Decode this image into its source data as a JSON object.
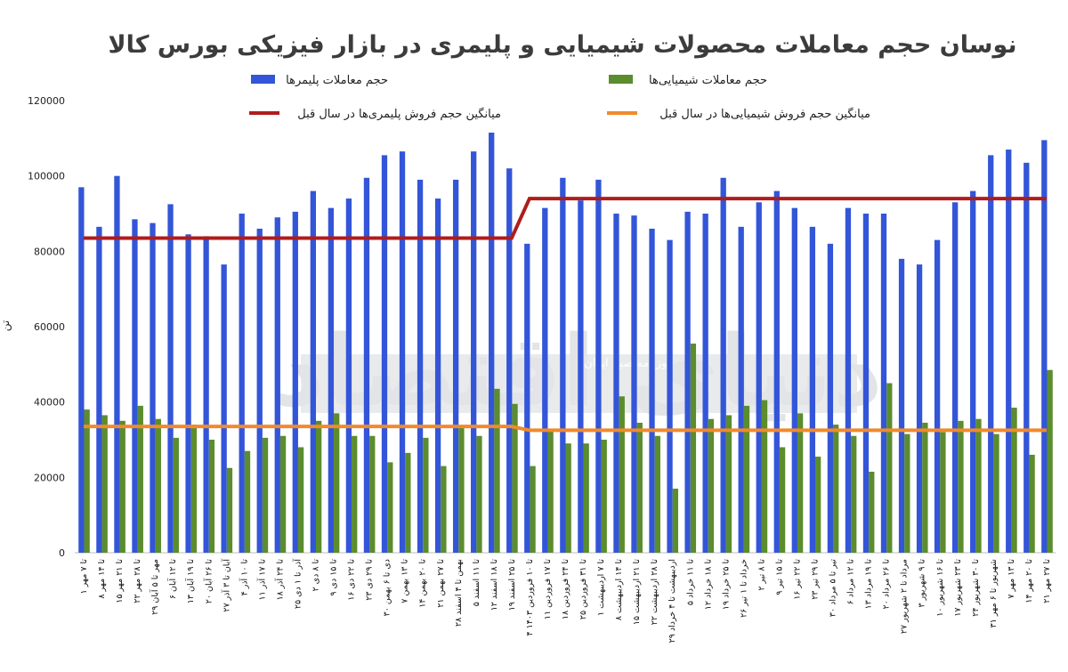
{
  "chart_data": {
    "type": "bar",
    "title": "نوسان حجم معاملات محصولات شیمیایی و پلیمری در بازار فیزیکی بورس کالا",
    "ylabel": "تن",
    "ylim": [
      0,
      120000
    ],
    "yticks": [
      0,
      20000,
      40000,
      60000,
      80000,
      100000,
      120000
    ],
    "grid": false,
    "legend_position": "top",
    "categories": [
      "۱ تا ۷ مهر",
      "۸ تا ۱۴ مهر",
      "۱۵ تا ۲۱ مهر",
      "۲۲ تا ۲۸ مهر",
      "۲۹ مهر تا ۵ آبان",
      "۶ تا ۱۲ آبان",
      "۱۳ تا ۱۹ آبان",
      "۲۰ تا ۲۶ آبان",
      "۲۷ آبان تا ۳ آذر",
      "۴ تا ۱۰ آذر",
      "۱۱ تا ۱۷ آذر",
      "۱۸ تا ۲۴ آذر",
      "۲۵ آذر تا ۱ دی",
      "۲ تا ۸ دی",
      "۹ تا ۱۵ دی",
      "۱۶ تا ۲۲ دی",
      "۲۳ تا ۲۹ دی",
      "۳۰ دی تا ۶ بهمن",
      "۷ تا ۱۳ بهمن",
      "۱۴ تا ۲۰ بهمن",
      "۲۱ تا ۲۷ بهمن",
      "۲۸ بهمن تا ۴ اسفند",
      "۵ تا ۱۱ اسفند",
      "۱۲ تا ۱۸ اسفند",
      "۱۹ تا ۲۵ اسفند",
      "۴ تا ۱۰ فروردین ۱۴۰۳",
      "۱۱ تا ۱۷ فروردین",
      "۱۸ تا ۲۴ فروردین",
      "۲۵ تا ۳۱ فروردین",
      "۱ تا ۷ اردیبهشت",
      "۸ تا ۱۴ اردیبهشت",
      "۱۵ تا ۲۱ اردیبهشت",
      "۲۲ تا ۲۸ اردیبهشت",
      "۲۹ اردیبهشت تا ۴ خرداد",
      "۵ تا ۱۱ خرداد",
      "۱۲ تا ۱۸ خرداد",
      "۱۹ تا ۲۵ خرداد",
      "۲۶ خرداد تا ۱ تیر",
      "۲ تا ۸ تیر",
      "۹ تا ۱۵ تیر",
      "۱۶ تا ۲۲ تیر",
      "۲۳ تا ۲۹ تیر",
      "۳۰ تیر تا ۵ مرداد",
      "۶ تا ۱۲ مرداد",
      "۱۳ تا ۱۹ مرداد",
      "۲۰ تا ۲۶ مرداد",
      "۲۷ مرداد تا ۲ شهریور",
      "۳ تا ۹ شهریور",
      "۱۰ تا ۱۶ شهریور",
      "۱۷ تا ۲۳ شهریور",
      "۲۴ تا ۳۰ شهریور",
      "۳۱ شهریور تا ۶ مهر",
      "۷ تا ۱۳ مهر",
      "۱۴ تا ۲۰ مهر",
      "۲۱ تا ۲۷ مهر"
    ],
    "series": [
      {
        "name": "حجم معاملات پلیمرها",
        "type": "bar",
        "color": "#3355d8",
        "values": [
          97000,
          86500,
          100000,
          88500,
          87500,
          92500,
          84500,
          84000,
          76500,
          90000,
          86000,
          89000,
          90500,
          96000,
          91500,
          94000,
          99500,
          105500,
          106500,
          99000,
          94000,
          99000,
          106500,
          111500,
          102000,
          82000,
          91500,
          99500,
          93500,
          99000,
          90000,
          89500,
          86000,
          83000,
          90500,
          90000,
          99500,
          86500,
          93000,
          96000,
          91500,
          86500,
          82000,
          91500,
          90000,
          90000,
          78000,
          76500,
          83000,
          93000,
          96000,
          105500,
          107000,
          103500,
          109500
        ]
      },
      {
        "name": "حجم معاملات شیمیایی‌ها",
        "type": "bar",
        "color": "#5b8c2e",
        "values": [
          38000,
          36500,
          35000,
          39000,
          35500,
          30500,
          34000,
          30000,
          22500,
          27000,
          30500,
          31000,
          28000,
          35000,
          37000,
          31000,
          31000,
          24000,
          26500,
          30500,
          23000,
          33500,
          31000,
          43500,
          39500,
          23000,
          32500,
          29000,
          29000,
          30000,
          41500,
          34500,
          31000,
          17000,
          55500,
          35500,
          36500,
          39000,
          40500,
          28000,
          37000,
          25500,
          34000,
          31000,
          21500,
          45000,
          31500,
          34500,
          32000,
          35000,
          35500,
          31500,
          38500,
          26000,
          48500
        ]
      },
      {
        "name": "میانگین حجم فروش پلیمری‌ها در سال قبل",
        "type": "line",
        "color": "#b01c1c",
        "values": [
          83500,
          83500,
          83500,
          83500,
          83500,
          83500,
          83500,
          83500,
          83500,
          83500,
          83500,
          83500,
          83500,
          83500,
          83500,
          83500,
          83500,
          83500,
          83500,
          83500,
          83500,
          83500,
          83500,
          83500,
          83500,
          94000,
          94000,
          94000,
          94000,
          94000,
          94000,
          94000,
          94000,
          94000,
          94000,
          94000,
          94000,
          94000,
          94000,
          94000,
          94000,
          94000,
          94000,
          94000,
          94000,
          94000,
          94000,
          94000,
          94000,
          94000,
          94000,
          94000,
          94000,
          94000,
          94000
        ]
      },
      {
        "name": "میانگین حجم فروش شیمیایی‌ها در سال قبل",
        "type": "line",
        "color": "#f08a2c",
        "values": [
          33500,
          33500,
          33500,
          33500,
          33500,
          33500,
          33500,
          33500,
          33500,
          33500,
          33500,
          33500,
          33500,
          33500,
          33500,
          33500,
          33500,
          33500,
          33500,
          33500,
          33500,
          33500,
          33500,
          33500,
          33500,
          32500,
          32500,
          32500,
          32500,
          32500,
          32500,
          32500,
          32500,
          32500,
          32500,
          32500,
          32500,
          32500,
          32500,
          32500,
          32500,
          32500,
          32500,
          32500,
          32500,
          32500,
          32500,
          32500,
          32500,
          32500,
          32500,
          32500,
          32500,
          32500,
          32500
        ]
      }
    ]
  },
  "watermark": {
    "brand": "دنیای اقتصاد",
    "tagline": "روزنامه صبح ایران"
  }
}
